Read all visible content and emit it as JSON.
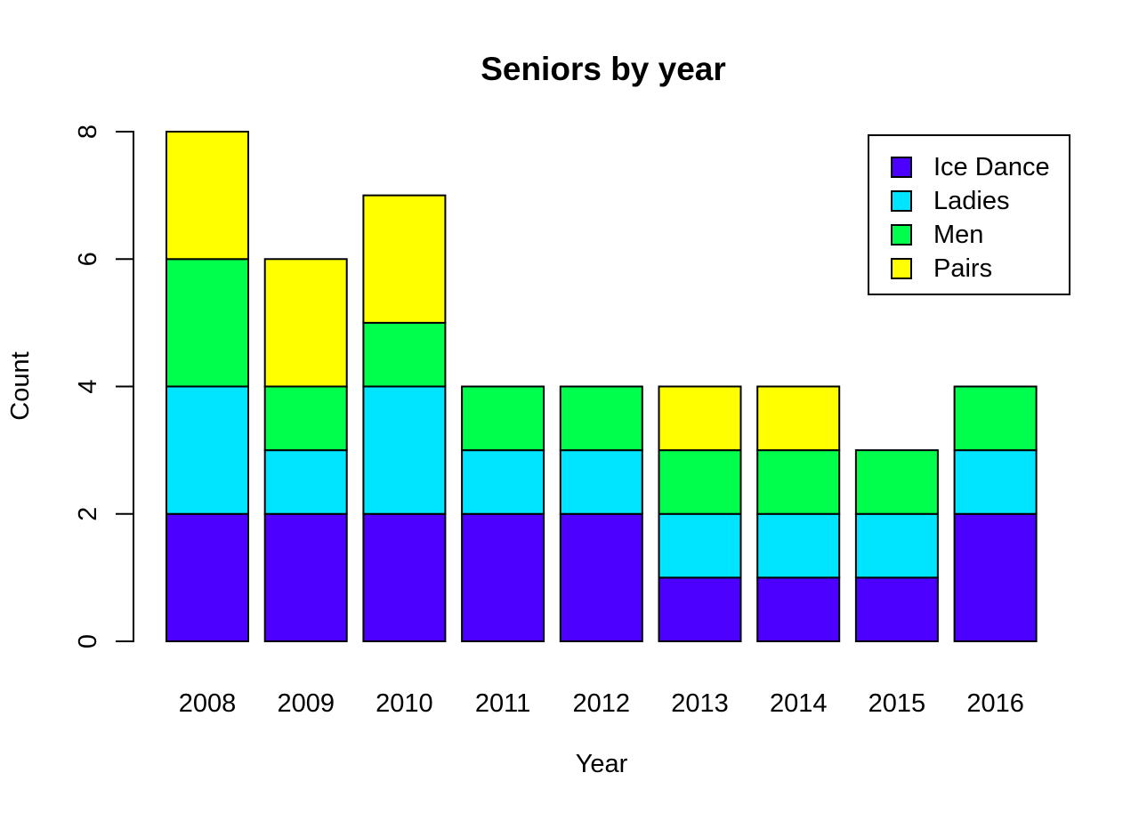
{
  "page": {
    "background": "#ffffff",
    "text_color": "#000000"
  },
  "chart_data": {
    "type": "bar",
    "stacked": true,
    "title": "Seniors by year",
    "xlabel": "Year",
    "ylabel": "Count",
    "categories": [
      "2008",
      "2009",
      "2010",
      "2011",
      "2012",
      "2013",
      "2014",
      "2015",
      "2016"
    ],
    "series": [
      {
        "name": "Ice Dance",
        "color": "#4C00FF",
        "values": [
          2,
          2,
          2,
          2,
          2,
          1,
          1,
          1,
          2
        ]
      },
      {
        "name": "Ladies",
        "color": "#00E5FF",
        "values": [
          2,
          1,
          2,
          1,
          1,
          1,
          1,
          1,
          1
        ]
      },
      {
        "name": "Men",
        "color": "#00FF4D",
        "values": [
          2,
          1,
          1,
          1,
          1,
          1,
          1,
          1,
          1
        ]
      },
      {
        "name": "Pairs",
        "color": "#FFFF00",
        "values": [
          2,
          2,
          2,
          0,
          0,
          1,
          1,
          0,
          0
        ]
      }
    ],
    "totals": [
      8,
      6,
      7,
      4,
      4,
      4,
      4,
      3,
      4
    ],
    "yticks": [
      0,
      2,
      4,
      6,
      8
    ],
    "ylim": [
      0,
      8
    ],
    "grid": false,
    "bar_border_color": "#000000",
    "axis_color": "#000000",
    "legend_position": "top-right",
    "legend_entries": [
      "Ice Dance",
      "Ladies",
      "Men",
      "Pairs"
    ]
  }
}
